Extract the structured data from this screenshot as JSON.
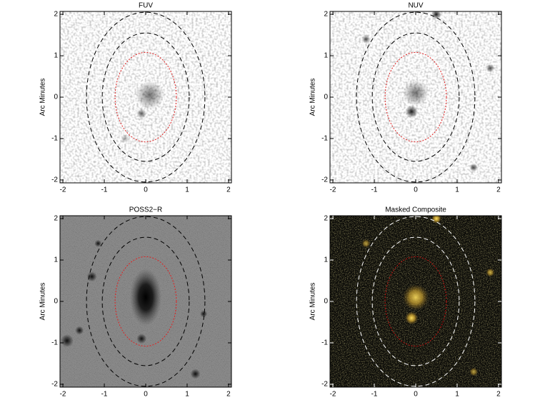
{
  "chart_data": [
    {
      "type": "image",
      "title": "FUV",
      "ylabel": "Arc Minutes",
      "xlim": [
        -2.07,
        2.07
      ],
      "ylim": [
        -2.07,
        2.07
      ],
      "xticks": [
        -2,
        -1,
        0,
        1,
        2
      ],
      "yticks": [
        -2,
        -1,
        0,
        1,
        2
      ],
      "apertures": [
        {
          "rx": 0.74,
          "ry": 1.08,
          "color": "#e02020"
        },
        {
          "rx": 1.05,
          "ry": 1.55,
          "color": "#000000"
        },
        {
          "rx": 1.43,
          "ry": 2.05,
          "color": "#000000"
        }
      ]
    },
    {
      "type": "image",
      "title": "NUV",
      "ylabel": "Arc Minutes",
      "xlim": [
        -2.07,
        2.07
      ],
      "ylim": [
        -2.07,
        2.07
      ],
      "xticks": [
        -2,
        -1,
        0,
        1,
        2
      ],
      "yticks": [
        -2,
        -1,
        0,
        1,
        2
      ],
      "apertures": [
        {
          "rx": 0.74,
          "ry": 1.08,
          "color": "#e02020"
        },
        {
          "rx": 1.05,
          "ry": 1.55,
          "color": "#000000"
        },
        {
          "rx": 1.43,
          "ry": 2.05,
          "color": "#000000"
        }
      ]
    },
    {
      "type": "image",
      "title": "POSS2−R",
      "ylabel": "Arc Minutes",
      "xlim": [
        -2.07,
        2.07
      ],
      "ylim": [
        -2.07,
        2.07
      ],
      "xticks": [
        -2,
        -1,
        0,
        1,
        2
      ],
      "yticks": [
        -2,
        -1,
        0,
        1,
        2
      ],
      "apertures": [
        {
          "rx": 0.74,
          "ry": 1.08,
          "color": "#e02020"
        },
        {
          "rx": 1.05,
          "ry": 1.55,
          "color": "#000000"
        },
        {
          "rx": 1.43,
          "ry": 2.05,
          "color": "#000000"
        }
      ]
    },
    {
      "type": "image",
      "title": "Masked Composite",
      "ylabel": "Arc Minutes",
      "xlim": [
        -2.07,
        2.07
      ],
      "ylim": [
        -2.07,
        2.07
      ],
      "xticks": [
        -2,
        -1,
        0,
        1,
        2
      ],
      "yticks": [
        -2,
        -1,
        0,
        1,
        2
      ],
      "apertures": [
        {
          "rx": 0.74,
          "ry": 1.08,
          "color": "#c01010"
        },
        {
          "rx": 1.05,
          "ry": 1.55,
          "color": "#ffffff"
        },
        {
          "rx": 1.43,
          "ry": 2.05,
          "color": "#ffffff"
        }
      ]
    }
  ]
}
